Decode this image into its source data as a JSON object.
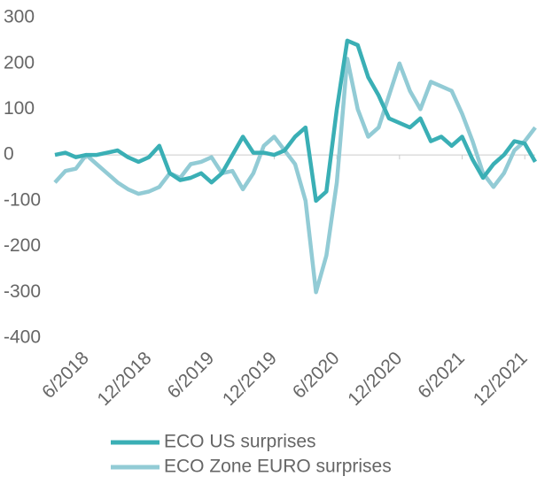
{
  "chart_data": {
    "type": "line",
    "x": [
      "3/2018",
      "4/2018",
      "5/2018",
      "6/2018",
      "7/2018",
      "8/2018",
      "9/2018",
      "10/2018",
      "11/2018",
      "12/2018",
      "1/2019",
      "2/2019",
      "3/2019",
      "4/2019",
      "5/2019",
      "6/2019",
      "7/2019",
      "8/2019",
      "9/2019",
      "10/2019",
      "11/2019",
      "12/2019",
      "1/2020",
      "2/2020",
      "3/2020",
      "4/2020",
      "5/2020",
      "6/2020",
      "7/2020",
      "8/2020",
      "9/2020",
      "10/2020",
      "11/2020",
      "12/2020",
      "1/2021",
      "2/2021",
      "3/2021",
      "4/2021",
      "5/2021",
      "6/2021",
      "7/2021",
      "8/2021",
      "9/2021",
      "10/2021",
      "11/2021",
      "12/2021",
      "1/2022"
    ],
    "series": [
      {
        "name": "ECO US surprises",
        "color": "#3aafb5",
        "values": [
          0,
          5,
          -5,
          0,
          0,
          5,
          10,
          -5,
          -15,
          -5,
          20,
          -40,
          -55,
          -50,
          -40,
          -60,
          -40,
          0,
          40,
          5,
          5,
          0,
          10,
          40,
          60,
          -100,
          -80,
          100,
          250,
          240,
          170,
          130,
          80,
          70,
          60,
          80,
          30,
          40,
          20,
          40,
          -10,
          -50,
          -20,
          0,
          30,
          25,
          -15
        ]
      },
      {
        "name": "ECO Zone EURO surprises",
        "color": "#92cbd5",
        "values": [
          -60,
          -35,
          -30,
          0,
          -20,
          -40,
          -60,
          -75,
          -85,
          -80,
          -70,
          -40,
          -50,
          -20,
          -15,
          -5,
          -40,
          -35,
          -75,
          -40,
          20,
          40,
          10,
          -20,
          -100,
          -300,
          -220,
          -60,
          210,
          100,
          40,
          60,
          130,
          200,
          140,
          100,
          160,
          150,
          140,
          90,
          30,
          -40,
          -70,
          -40,
          10,
          30,
          60
        ]
      }
    ],
    "xlim": [
      "3/2018",
      "1/2022"
    ],
    "xticks": [
      "6/2018",
      "12/2018",
      "6/2019",
      "12/2019",
      "6/2020",
      "12/2020",
      "6/2021",
      "12/2021"
    ],
    "ylim": [
      -400,
      300
    ],
    "yticks": [
      300,
      200,
      100,
      0,
      -100,
      -200,
      -300,
      -400
    ],
    "grid": false
  }
}
